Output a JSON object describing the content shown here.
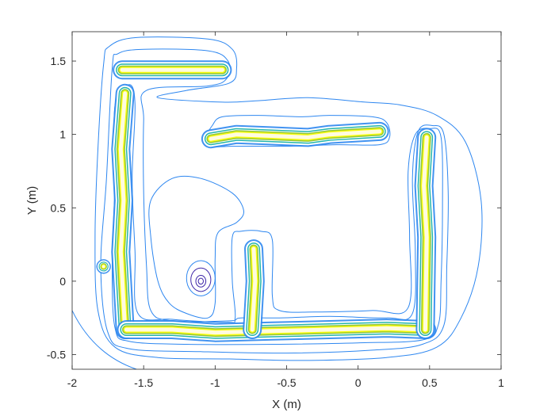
{
  "chart_data": {
    "type": "contour",
    "title": "",
    "xlabel": "X (m)",
    "ylabel": "Y (m)",
    "xlim": [
      -2,
      1
    ],
    "ylim": [
      -0.6,
      1.7
    ],
    "xticks": [
      -2,
      -1.5,
      -1,
      -0.5,
      0,
      0.5,
      1
    ],
    "xtick_labels": [
      "-2",
      "-1.5",
      "-1",
      "-0.5",
      "0",
      "0.5",
      "1"
    ],
    "yticks": [
      -0.5,
      0,
      0.5,
      1,
      1.5
    ],
    "ytick_labels": [
      "-0.5",
      "0",
      "0.5",
      "1",
      "1.5"
    ],
    "grid": false,
    "legend": "none",
    "colormap": "parula",
    "colors": {
      "low": "#3e26a8",
      "mid_low": "#2e87f0",
      "mid": "#1ab2a8",
      "mid_high": "#8fc63a",
      "high": "#f9fb0e"
    },
    "walls": [
      {
        "name": "top-left-bar",
        "points": [
          [
            -1.65,
            1.44
          ],
          [
            -0.95,
            1.44
          ]
        ]
      },
      {
        "name": "left-column",
        "points": [
          [
            -1.63,
            1.28
          ],
          [
            -1.66,
            0.9
          ],
          [
            -1.64,
            0.55
          ],
          [
            -1.66,
            0.2
          ],
          [
            -1.63,
            -0.33
          ]
        ]
      },
      {
        "name": "bottom-bar",
        "points": [
          [
            -1.62,
            -0.33
          ],
          [
            -1.3,
            -0.33
          ],
          [
            -1.0,
            -0.35
          ],
          [
            -0.6,
            -0.34
          ],
          [
            -0.2,
            -0.33
          ],
          [
            0.2,
            -0.32
          ],
          [
            0.48,
            -0.33
          ]
        ]
      },
      {
        "name": "middle-column",
        "points": [
          [
            -0.73,
            0.22
          ],
          [
            -0.72,
            0.0
          ],
          [
            -0.74,
            -0.33
          ]
        ]
      },
      {
        "name": "right-column",
        "points": [
          [
            0.48,
            0.98
          ],
          [
            0.46,
            0.65
          ],
          [
            0.48,
            0.3
          ],
          [
            0.47,
            -0.33
          ]
        ]
      },
      {
        "name": "top-bar",
        "points": [
          [
            -1.03,
            0.97
          ],
          [
            -0.85,
            1.0
          ],
          [
            -0.6,
            0.99
          ],
          [
            -0.35,
            0.98
          ],
          [
            -0.2,
            1.0
          ],
          [
            0.15,
            1.02
          ]
        ]
      },
      {
        "name": "dot-left",
        "points": [
          [
            -1.78,
            0.1
          ]
        ]
      }
    ],
    "basin_center": [
      -1.1,
      0.0
    ]
  }
}
